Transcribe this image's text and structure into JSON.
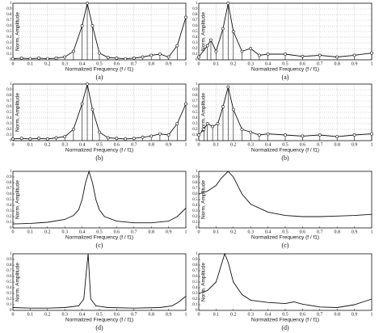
{
  "chart_data": [
    {
      "type": "stem",
      "caption": "(a)",
      "xlabel": "Normalized Frequency (f / f1)",
      "ylabel": "Norm. Amplitude",
      "grid": true,
      "color": "#111",
      "xlim": [
        0,
        1
      ],
      "ylim": [
        0,
        1
      ],
      "xticks": [
        0,
        0.1,
        0.2,
        0.3,
        0.4,
        0.5,
        0.6,
        0.7,
        0.8,
        0.9,
        1
      ],
      "yticks": [
        0,
        0.1,
        0.2,
        0.3,
        0.4,
        0.5,
        0.6,
        0.7,
        0.8,
        0.9,
        1
      ],
      "x": [
        0,
        0.05,
        0.1,
        0.15,
        0.2,
        0.25,
        0.3,
        0.35,
        0.4,
        0.43,
        0.46,
        0.5,
        0.55,
        0.6,
        0.65,
        0.7,
        0.75,
        0.8,
        0.85,
        0.9,
        0.95,
        1
      ],
      "values": [
        0.02,
        0.03,
        0.02,
        0.03,
        0.02,
        0.03,
        0.05,
        0.15,
        0.6,
        1,
        0.6,
        0.12,
        0.04,
        0.03,
        0.02,
        0.03,
        0.05,
        0.08,
        0.1,
        0.05,
        0.25,
        0.75
      ]
    },
    {
      "type": "stem",
      "caption": "(a)",
      "xlabel": "Normalized Frequency (f / f1)",
      "ylabel": "Norm. Amplitude",
      "grid": true,
      "color": "#111",
      "xlim": [
        0,
        1
      ],
      "ylim": [
        0,
        1
      ],
      "xticks": [
        0,
        0.1,
        0.2,
        0.3,
        0.4,
        0.5,
        0.6,
        0.7,
        0.8,
        0.9,
        1
      ],
      "yticks": [
        0,
        0.1,
        0.2,
        0.3,
        0.4,
        0.5,
        0.6,
        0.7,
        0.8,
        0.9,
        1
      ],
      "x": [
        0,
        0.05,
        0.07,
        0.1,
        0.14,
        0.17,
        0.2,
        0.25,
        0.3,
        0.35,
        0.4,
        0.5,
        0.6,
        0.7,
        0.8,
        0.9,
        1
      ],
      "values": [
        0.05,
        0.25,
        0.35,
        0.15,
        0.55,
        1,
        0.5,
        0.15,
        0.2,
        0.08,
        0.1,
        0.1,
        0.06,
        0.08,
        0.05,
        0.08,
        0.12
      ]
    },
    {
      "type": "stem",
      "caption": "(b)",
      "xlabel": "Normalized Frequency (f / f1)",
      "ylabel": "Norm. Amplitude",
      "grid": true,
      "color": "#111",
      "xlim": [
        0,
        1
      ],
      "ylim": [
        0,
        1
      ],
      "xticks": [
        0,
        0.1,
        0.2,
        0.3,
        0.4,
        0.5,
        0.6,
        0.7,
        0.8,
        0.9,
        1
      ],
      "yticks": [
        0,
        0.1,
        0.2,
        0.3,
        0.4,
        0.5,
        0.6,
        0.7,
        0.8,
        0.9,
        1
      ],
      "x": [
        0,
        0.05,
        0.1,
        0.15,
        0.2,
        0.25,
        0.3,
        0.35,
        0.4,
        0.43,
        0.46,
        0.5,
        0.55,
        0.6,
        0.65,
        0.7,
        0.75,
        0.8,
        0.85,
        0.9,
        0.95,
        1
      ],
      "values": [
        0.03,
        0.04,
        0.03,
        0.04,
        0.03,
        0.05,
        0.07,
        0.2,
        0.65,
        1,
        0.55,
        0.15,
        0.05,
        0.04,
        0.03,
        0.04,
        0.06,
        0.08,
        0.12,
        0.1,
        0.3,
        0.65
      ]
    },
    {
      "type": "stem",
      "caption": "(b)",
      "xlabel": "Normalized Frequency (f / f1)",
      "ylabel": "Norm. Amplitude",
      "grid": true,
      "color": "#111",
      "xlim": [
        0,
        1
      ],
      "ylim": [
        0,
        1
      ],
      "xticks": [
        0,
        0.1,
        0.2,
        0.3,
        0.4,
        0.5,
        0.6,
        0.7,
        0.8,
        0.9,
        1
      ],
      "yticks": [
        0,
        0.1,
        0.2,
        0.3,
        0.4,
        0.5,
        0.6,
        0.7,
        0.8,
        0.9,
        1
      ],
      "x": [
        0,
        0.03,
        0.05,
        0.08,
        0.11,
        0.14,
        0.17,
        0.2,
        0.25,
        0.3,
        0.35,
        0.4,
        0.5,
        0.6,
        0.7,
        0.8,
        0.9,
        1
      ],
      "values": [
        0.1,
        0.2,
        0.3,
        0.25,
        0.3,
        0.6,
        0.95,
        0.55,
        0.2,
        0.15,
        0.1,
        0.12,
        0.1,
        0.08,
        0.1,
        0.07,
        0.1,
        0.12
      ]
    },
    {
      "type": "line",
      "caption": "(c)",
      "xlabel": "Normalized Frequency (f / f1)",
      "ylabel": "Norm. Amplitude",
      "grid": false,
      "color": "#111",
      "xlim": [
        0,
        1
      ],
      "ylim": [
        0,
        1
      ],
      "xticks": [
        0,
        0.1,
        0.2,
        0.3,
        0.4,
        0.5,
        0.6,
        0.7,
        0.8,
        0.9,
        1
      ],
      "yticks": [
        0,
        0.1,
        0.2,
        0.3,
        0.4,
        0.5,
        0.6,
        0.7,
        0.8,
        0.9,
        1
      ],
      "x": [
        0,
        0.1,
        0.2,
        0.3,
        0.35,
        0.38,
        0.4,
        0.42,
        0.44,
        0.46,
        0.48,
        0.5,
        0.53,
        0.6,
        0.7,
        0.8,
        0.9,
        0.95,
        1
      ],
      "values": [
        0.07,
        0.08,
        0.1,
        0.15,
        0.22,
        0.32,
        0.5,
        0.8,
        1,
        0.8,
        0.5,
        0.32,
        0.2,
        0.12,
        0.09,
        0.09,
        0.12,
        0.2,
        0.35
      ]
    },
    {
      "type": "line",
      "caption": "(c)",
      "xlabel": "Normalized Frequency (f / f1)",
      "ylabel": "Norm. Amplitude",
      "grid": false,
      "color": "#111",
      "xlim": [
        0,
        1
      ],
      "ylim": [
        0,
        1
      ],
      "xticks": [
        0,
        0.1,
        0.2,
        0.3,
        0.4,
        0.5,
        0.6,
        0.7,
        0.8,
        0.9,
        1
      ],
      "yticks": [
        0,
        0.1,
        0.2,
        0.3,
        0.4,
        0.5,
        0.6,
        0.7,
        0.8,
        0.9,
        1
      ],
      "x": [
        0,
        0.05,
        0.1,
        0.13,
        0.17,
        0.2,
        0.25,
        0.3,
        0.4,
        0.5,
        0.6,
        0.7,
        0.8,
        0.9,
        1
      ],
      "values": [
        0.6,
        0.65,
        0.75,
        0.88,
        1,
        0.9,
        0.6,
        0.42,
        0.28,
        0.22,
        0.2,
        0.2,
        0.21,
        0.22,
        0.24
      ]
    },
    {
      "type": "line",
      "caption": "(d)",
      "xlabel": "Normalized Frequency (f / f1)",
      "ylabel": "Norm. Amplitude",
      "grid": false,
      "color": "#111",
      "xlim": [
        0,
        1
      ],
      "ylim": [
        0,
        1
      ],
      "xticks": [
        0,
        0.1,
        0.2,
        0.3,
        0.4,
        0.5,
        0.6,
        0.7,
        0.8,
        0.9,
        1
      ],
      "yticks": [
        0,
        0.1,
        0.2,
        0.3,
        0.4,
        0.5,
        0.6,
        0.7,
        0.8,
        0.9,
        1
      ],
      "x": [
        0,
        0.1,
        0.2,
        0.3,
        0.38,
        0.41,
        0.425,
        0.435,
        0.45,
        0.48,
        0.55,
        0.7,
        0.85,
        0.92,
        0.96,
        1
      ],
      "values": [
        0.05,
        0.04,
        0.04,
        0.05,
        0.08,
        0.2,
        0.7,
        1,
        0.2,
        0.08,
        0.05,
        0.04,
        0.05,
        0.08,
        0.15,
        0.25
      ]
    },
    {
      "type": "line",
      "caption": "(d)",
      "xlabel": "Normalized Frequency (f / f1)",
      "ylabel": "Norm. Amplitude",
      "grid": false,
      "color": "#111",
      "xlim": [
        0,
        1
      ],
      "ylim": [
        0,
        1
      ],
      "xticks": [
        0,
        0.1,
        0.2,
        0.3,
        0.4,
        0.5,
        0.6,
        0.7,
        0.8,
        0.9,
        1
      ],
      "yticks": [
        0,
        0.1,
        0.2,
        0.3,
        0.4,
        0.5,
        0.6,
        0.7,
        0.8,
        0.9,
        1
      ],
      "x": [
        0,
        0.05,
        0.1,
        0.13,
        0.15,
        0.17,
        0.2,
        0.25,
        0.3,
        0.4,
        0.5,
        0.55,
        0.6,
        0.7,
        0.8,
        0.9,
        1
      ],
      "values": [
        0.3,
        0.35,
        0.5,
        0.8,
        1,
        0.85,
        0.5,
        0.28,
        0.18,
        0.14,
        0.12,
        0.15,
        0.11,
        0.06,
        0.05,
        0.1,
        0.2
      ]
    }
  ]
}
